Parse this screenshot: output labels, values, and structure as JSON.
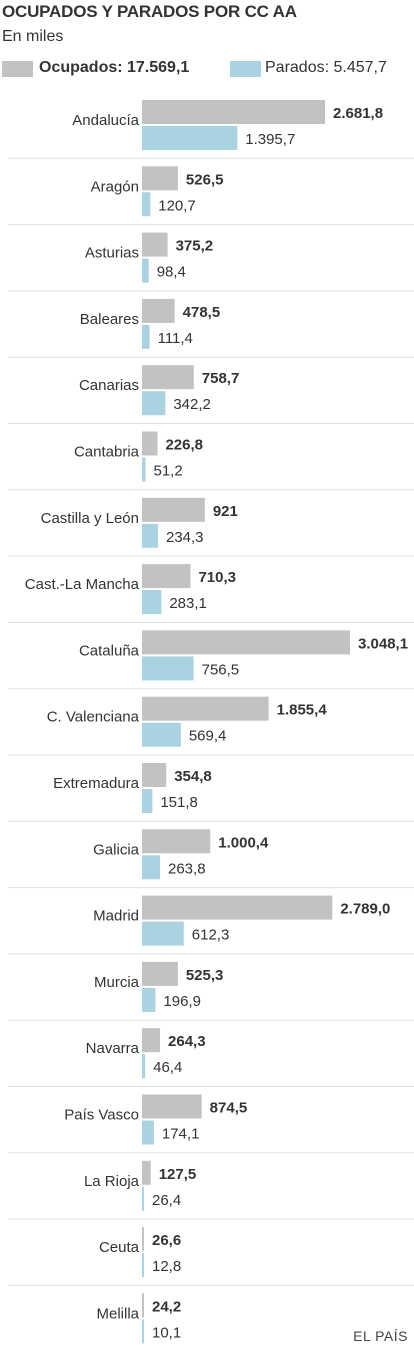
{
  "header": {
    "title": "OCUPADOS Y PARADOS POR CC AA",
    "subtitle": "En miles"
  },
  "legend": {
    "occupied_label": "Ocupados: 17.569,1",
    "unemployed_label": "Parados: 5.457,7"
  },
  "colors": {
    "occupied": "#c2c2c2",
    "unemployed": "#a9d3e0",
    "text": "#333333",
    "divider": "#e0e0e0"
  },
  "chart_data": {
    "type": "bar",
    "orientation": "horizontal",
    "categories": [
      "Andalucía",
      "Aragón",
      "Asturias",
      "Baleares",
      "Canarias",
      "Cantabria",
      "Castilla y León",
      "Cast.-La Mancha",
      "Cataluña",
      "C. Valenciana",
      "Extremadura",
      "Galicia",
      "Madrid",
      "Murcia",
      "Navarra",
      "País Vasco",
      "La Rioja",
      "Ceuta",
      "Melilla"
    ],
    "series": [
      {
        "values": [
          2681.8,
          526.5,
          375.2,
          478.5,
          758.7,
          226.8,
          921,
          710.3,
          3048.1,
          1855.4,
          354.8,
          1000.4,
          2789.0,
          525.3,
          264.3,
          874.5,
          127.5,
          26.6,
          24.2
        ],
        "labels": [
          "2.681,8",
          "526,5",
          "375,2",
          "478,5",
          "758,7",
          "226,8",
          "921",
          "710,3",
          "3.048,1",
          "1.855,4",
          "354,8",
          "1.000,4",
          "2.789,0",
          "525,3",
          "264,3",
          "874,5",
          "127,5",
          "26,6",
          "24,2"
        ]
      },
      {
        "values": [
          1395.7,
          120.7,
          98.4,
          111.4,
          342.2,
          51.2,
          234.3,
          283.1,
          756.5,
          569.4,
          151.8,
          263.8,
          612.3,
          196.9,
          46.4,
          174.1,
          26.4,
          12.8,
          10.1
        ],
        "labels": [
          "1.395,7",
          "120,7",
          "98,4",
          "111,4",
          "342,2",
          "51,2",
          "234,3",
          "283,1",
          "756,5",
          "569,4",
          "151,8",
          "263,8",
          "612,3",
          "196,9",
          "46,4",
          "174,1",
          "26,4",
          "12,8",
          "10,1"
        ]
      }
    ],
    "xlim": [
      0,
      3048.1
    ],
    "grid": false
  },
  "footer": {
    "source": "EL PAÍS"
  }
}
